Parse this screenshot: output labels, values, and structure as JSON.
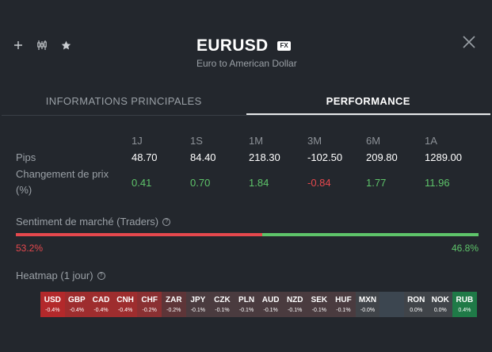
{
  "header": {
    "pair": "EURUSD",
    "badge": "FX",
    "subtitle": "Euro to American Dollar",
    "icons": [
      "plus-icon",
      "candlestick-icon",
      "star-icon",
      "close-icon"
    ]
  },
  "tabs": [
    {
      "label": "INFORMATIONS PRINCIPALES",
      "active": false
    },
    {
      "label": "PERFORMANCE",
      "active": true
    }
  ],
  "performance": {
    "periods": [
      "1J",
      "1S",
      "1M",
      "3M",
      "6M",
      "1A"
    ],
    "pips_label": "Pips",
    "pips": [
      "48.70",
      "84.40",
      "218.30",
      "-102.50",
      "209.80",
      "1289.00"
    ],
    "change_label_line1": "Changement de prix",
    "change_label_line2": "(%)",
    "change": [
      "0.41",
      "0.70",
      "1.84",
      "-0.84",
      "1.77",
      "11.96"
    ]
  },
  "sentiment": {
    "title": "Sentiment de marché (Traders)",
    "sell_pct": "53.2%",
    "buy_pct": "46.8%",
    "sell_fraction": 0.532,
    "sell_color": "#e5484d",
    "buy_color": "#5ec46a"
  },
  "heatmap": {
    "title": "Heatmap (1 jour)",
    "cells": [
      {
        "ccy": "USD",
        "chg": "-0.4%",
        "color": "#b3292b"
      },
      {
        "ccy": "GBP",
        "chg": "-0.4%",
        "color": "#9e2d2e"
      },
      {
        "ccy": "CAD",
        "chg": "-0.4%",
        "color": "#9e2d2e"
      },
      {
        "ccy": "CNH",
        "chg": "-0.4%",
        "color": "#9e2d2e"
      },
      {
        "ccy": "CHF",
        "chg": "-0.2%",
        "color": "#8a3032"
      },
      {
        "ccy": "ZAR",
        "chg": "-0.2%",
        "color": "#5e3538"
      },
      {
        "ccy": "JPY",
        "chg": "-0.1%",
        "color": "#4a3b3f"
      },
      {
        "ccy": "CZK",
        "chg": "-0.1%",
        "color": "#4a3b3f"
      },
      {
        "ccy": "PLN",
        "chg": "-0.1%",
        "color": "#4a3b3f"
      },
      {
        "ccy": "AUD",
        "chg": "-0.1%",
        "color": "#4a3b3f"
      },
      {
        "ccy": "NZD",
        "chg": "-0.1%",
        "color": "#4a3b3f"
      },
      {
        "ccy": "SEK",
        "chg": "-0.1%",
        "color": "#4a3b3f"
      },
      {
        "ccy": "HUF",
        "chg": "-0.1%",
        "color": "#4a3b3f"
      },
      {
        "ccy": "MXN",
        "chg": "-0.0%",
        "color": "#404449"
      },
      {
        "ccy": "",
        "chg": "",
        "color": "#3c4650"
      },
      {
        "ccy": "RON",
        "chg": "0.0%",
        "color": "#404449"
      },
      {
        "ccy": "NOK",
        "chg": "0.0%",
        "color": "#404449"
      },
      {
        "ccy": "RUB",
        "chg": "0.4%",
        "color": "#1f7a47"
      }
    ]
  }
}
